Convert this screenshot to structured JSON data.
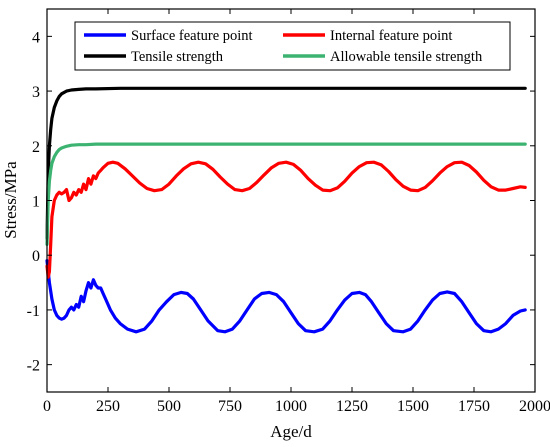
{
  "chart_data": {
    "type": "line",
    "title": "",
    "xlabel": "Age/d",
    "ylabel": "Stress/MPa",
    "xlim": [
      0,
      2000
    ],
    "ylim": [
      -2.5,
      4.5
    ],
    "xticks": [
      0,
      250,
      500,
      750,
      1000,
      1250,
      1500,
      1750,
      2000
    ],
    "yticks": [
      -2,
      -1,
      0,
      1,
      2,
      3,
      4
    ],
    "grid": false,
    "legend": {
      "placement": "top",
      "columns": 2
    },
    "series": [
      {
        "name": "Surface feature point",
        "color": "#0000ff",
        "x": [
          0,
          5,
          10,
          20,
          30,
          40,
          50,
          60,
          70,
          80,
          90,
          100,
          110,
          120,
          130,
          140,
          150,
          160,
          170,
          180,
          190,
          200,
          210,
          220,
          230,
          240,
          260,
          280,
          300,
          330,
          365,
          400,
          430,
          460,
          490,
          520,
          550,
          575,
          600,
          630,
          660,
          700,
          730,
          760,
          790,
          820,
          850,
          880,
          910,
          940,
          970,
          1000,
          1030,
          1060,
          1095,
          1130,
          1160,
          1190,
          1220,
          1250,
          1280,
          1305,
          1330,
          1360,
          1390,
          1420,
          1460,
          1490,
          1520,
          1550,
          1580,
          1610,
          1640,
          1670,
          1700,
          1730,
          1760,
          1790,
          1820,
          1850,
          1880,
          1910,
          1940,
          1960
        ],
        "y": [
          -0.1,
          -0.3,
          -0.5,
          -0.8,
          -1.0,
          -1.1,
          -1.15,
          -1.17,
          -1.15,
          -1.1,
          -1.0,
          -0.95,
          -1.0,
          -0.9,
          -0.95,
          -0.75,
          -0.85,
          -0.65,
          -0.5,
          -0.6,
          -0.45,
          -0.55,
          -0.6,
          -0.6,
          -0.7,
          -0.8,
          -1.0,
          -1.15,
          -1.25,
          -1.35,
          -1.4,
          -1.35,
          -1.2,
          -1.0,
          -0.85,
          -0.72,
          -0.68,
          -0.7,
          -0.8,
          -1.0,
          -1.2,
          -1.38,
          -1.4,
          -1.35,
          -1.2,
          -1.0,
          -0.8,
          -0.7,
          -0.68,
          -0.72,
          -0.85,
          -1.05,
          -1.25,
          -1.38,
          -1.4,
          -1.35,
          -1.2,
          -1.0,
          -0.82,
          -0.7,
          -0.68,
          -0.72,
          -0.85,
          -1.05,
          -1.25,
          -1.38,
          -1.4,
          -1.35,
          -1.2,
          -1.0,
          -0.82,
          -0.7,
          -0.67,
          -0.7,
          -0.85,
          -1.05,
          -1.25,
          -1.38,
          -1.4,
          -1.35,
          -1.25,
          -1.1,
          -1.02,
          -1.0
        ]
      },
      {
        "name": "Internal feature point",
        "color": "#ff0000",
        "x": [
          0,
          5,
          10,
          15,
          20,
          30,
          40,
          50,
          60,
          70,
          80,
          90,
          100,
          110,
          120,
          130,
          140,
          150,
          160,
          170,
          180,
          190,
          200,
          210,
          220,
          230,
          250,
          270,
          290,
          320,
          350,
          380,
          410,
          440,
          470,
          500,
          530,
          560,
          590,
          620,
          650,
          680,
          710,
          740,
          770,
          800,
          830,
          860,
          890,
          920,
          950,
          980,
          1010,
          1040,
          1070,
          1100,
          1130,
          1160,
          1190,
          1220,
          1250,
          1280,
          1310,
          1340,
          1370,
          1400,
          1430,
          1460,
          1490,
          1520,
          1550,
          1580,
          1610,
          1640,
          1670,
          1700,
          1730,
          1760,
          1790,
          1820,
          1850,
          1880,
          1910,
          1940,
          1960
        ],
        "y": [
          -0.2,
          -0.4,
          -0.3,
          0.2,
          0.7,
          1.0,
          1.1,
          1.15,
          1.12,
          1.15,
          1.2,
          1.0,
          1.05,
          1.15,
          1.1,
          1.2,
          1.15,
          1.3,
          1.2,
          1.4,
          1.3,
          1.45,
          1.4,
          1.5,
          1.55,
          1.6,
          1.68,
          1.7,
          1.68,
          1.58,
          1.45,
          1.32,
          1.22,
          1.18,
          1.2,
          1.3,
          1.45,
          1.58,
          1.67,
          1.7,
          1.67,
          1.57,
          1.43,
          1.3,
          1.2,
          1.18,
          1.22,
          1.33,
          1.47,
          1.6,
          1.68,
          1.7,
          1.66,
          1.55,
          1.4,
          1.28,
          1.19,
          1.18,
          1.23,
          1.35,
          1.5,
          1.62,
          1.69,
          1.7,
          1.65,
          1.53,
          1.38,
          1.26,
          1.19,
          1.18,
          1.24,
          1.36,
          1.5,
          1.62,
          1.69,
          1.7,
          1.64,
          1.52,
          1.37,
          1.25,
          1.19,
          1.19,
          1.22,
          1.25,
          1.24
        ]
      },
      {
        "name": "Tensile strength",
        "color": "#000000",
        "x": [
          0,
          5,
          10,
          15,
          20,
          30,
          40,
          50,
          60,
          80,
          100,
          130,
          160,
          200,
          300,
          500,
          1000,
          1500,
          1960
        ],
        "y": [
          0.3,
          1.5,
          2.0,
          2.3,
          2.5,
          2.7,
          2.82,
          2.9,
          2.95,
          3.0,
          3.02,
          3.03,
          3.04,
          3.04,
          3.05,
          3.05,
          3.05,
          3.05,
          3.05
        ]
      },
      {
        "name": "Allowable tensile strength",
        "color": "#3cb371",
        "x": [
          0,
          5,
          10,
          15,
          20,
          30,
          40,
          50,
          60,
          80,
          100,
          130,
          160,
          200,
          300,
          500,
          1000,
          1500,
          1960
        ],
        "y": [
          0.2,
          1.0,
          1.35,
          1.55,
          1.68,
          1.8,
          1.88,
          1.93,
          1.96,
          1.99,
          2.01,
          2.02,
          2.02,
          2.03,
          2.03,
          2.03,
          2.03,
          2.03,
          2.03
        ]
      }
    ]
  }
}
